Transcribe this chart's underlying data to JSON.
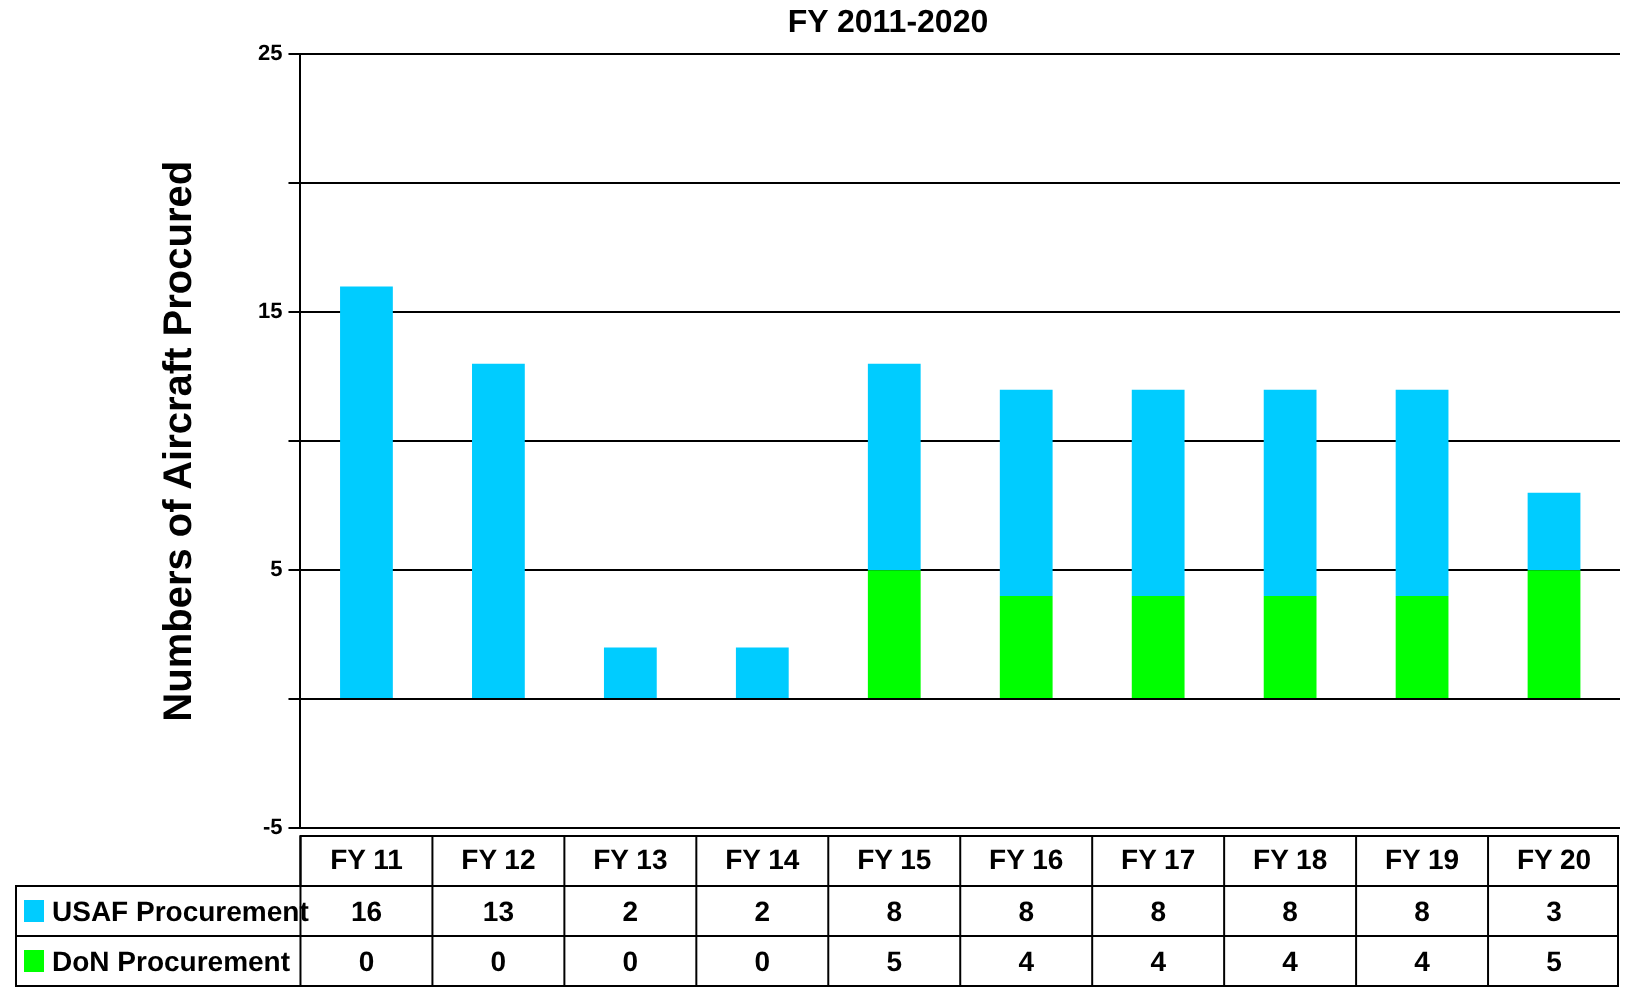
{
  "chart_data": {
    "type": "bar",
    "title": "FY 2011-2020",
    "ylabel": "Numbers of Aircraft Procured",
    "stacked": true,
    "data_labels": true,
    "grid": "y",
    "legend": "bottom left",
    "categories": [
      "FY 11",
      "FY 12",
      "FY 13",
      "FY 14",
      "FY 15",
      "FY 16",
      "FY 17",
      "FY 18",
      "FY 19",
      "FY 20"
    ],
    "series": [
      {
        "name": "DoN Procurement",
        "color": "#00ff00",
        "values": [
          0,
          0,
          0,
          0,
          5,
          4,
          4,
          4,
          4,
          5
        ]
      },
      {
        "name": "USAF Procurement",
        "color": "#00ccff",
        "values": [
          16,
          13,
          2,
          2,
          8,
          8,
          8,
          8,
          8,
          3
        ]
      }
    ],
    "ylim": [
      -5,
      25
    ],
    "yticks": [
      -5,
      {
        "value": 0,
        "label": null
      },
      5,
      {
        "value": 10,
        "label": null
      },
      15,
      {
        "value": 20,
        "label": null
      },
      25
    ]
  }
}
